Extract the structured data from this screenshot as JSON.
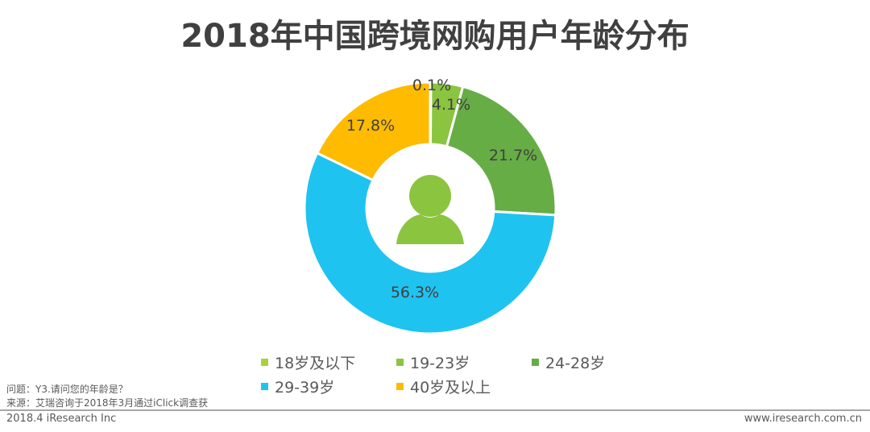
{
  "title": "2018年中国跨境网购用户年龄分布",
  "chart_data": {
    "type": "pie",
    "subtype": "donut",
    "title": "2018年中国跨境网购用户年龄分布",
    "categories": [
      "18岁及以下",
      "19-23岁",
      "24-28岁",
      "29-39岁",
      "40岁及以上"
    ],
    "values": [
      0.1,
      4.1,
      21.7,
      56.3,
      17.8
    ],
    "labels": [
      "0.1%",
      "4.1%",
      "21.7%",
      "56.3%",
      "17.8%"
    ],
    "colors": [
      "#a9d13a",
      "#8bc43f",
      "#66ad45",
      "#1fc3f0",
      "#ffbb00"
    ],
    "unit": "%",
    "start_angle_deg": 0,
    "direction": "clockwise",
    "legend_position": "bottom",
    "center_icon": "user-icon"
  },
  "legend": {
    "items": [
      {
        "label": "18岁及以下",
        "color": "#a9d13a"
      },
      {
        "label": "19-23岁",
        "color": "#8bc43f"
      },
      {
        "label": "24-28岁",
        "color": "#66ad45"
      },
      {
        "label": "29-39岁",
        "color": "#1fc3f0"
      },
      {
        "label": "40岁及以上",
        "color": "#ffbb00"
      }
    ]
  },
  "notes": {
    "question": "问题：Y3.请问您的年龄是？",
    "source": "来源：艾瑞咨询于2018年3月通过iClick调查获"
  },
  "footer": {
    "left": "2018.4 iResearch Inc",
    "right": "www.iresearch.com.cn"
  },
  "colors": {
    "title": "#404040",
    "text": "#595959",
    "icon": "#8bc43f",
    "separator": "#a6a6a6"
  }
}
